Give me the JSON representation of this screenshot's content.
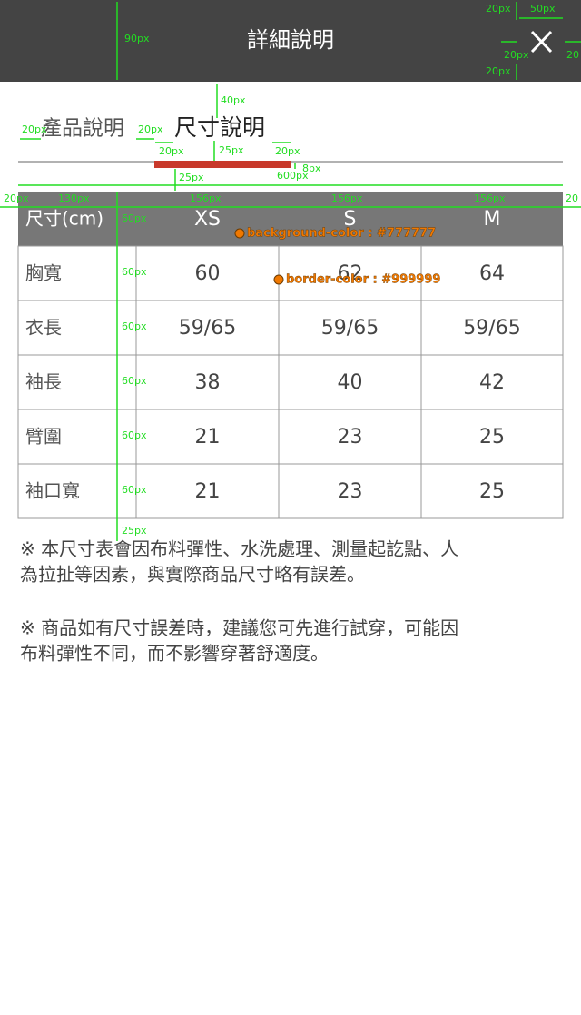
{
  "header": {
    "title": "詳細說明"
  },
  "tabs": [
    "產品說明",
    "尺寸說明"
  ],
  "table": {
    "header": [
      "尺寸(cm)",
      "XS",
      "S",
      "M"
    ],
    "rows": [
      [
        "胸寬",
        "60",
        "62",
        "64"
      ],
      [
        "衣長",
        "59/65",
        "59/65",
        "59/65"
      ],
      [
        "袖長",
        "38",
        "40",
        "42"
      ],
      [
        "臂圍",
        "21",
        "23",
        "25"
      ],
      [
        "袖口寬",
        "21",
        "23",
        "25"
      ]
    ]
  },
  "notes": [
    [
      "※ 本尺寸表會因布料彈性、水洗處理、測量起訖點、人",
      "為拉扯等因素，與實際商品尺寸略有誤差。"
    ],
    [
      "※ 商品如有尺寸誤差時，建議您可先進行試穿，可能因",
      "布料彈性不同，而不影響穿著舒適度。"
    ]
  ],
  "annotations": [
    "90px",
    "20px",
    "50px",
    "20px",
    "20",
    "20px",
    "40px",
    "20px",
    "20px",
    "20px",
    "25px",
    "20px",
    "8px",
    "600px",
    "25px",
    "20px",
    "130px",
    "156px",
    "156px",
    "156px",
    "20",
    "60px",
    "60px",
    "60px",
    "60px",
    "60px",
    "60px",
    "25px"
  ],
  "callouts": [
    "background-color : #777777",
    "border-color : #999999"
  ]
}
